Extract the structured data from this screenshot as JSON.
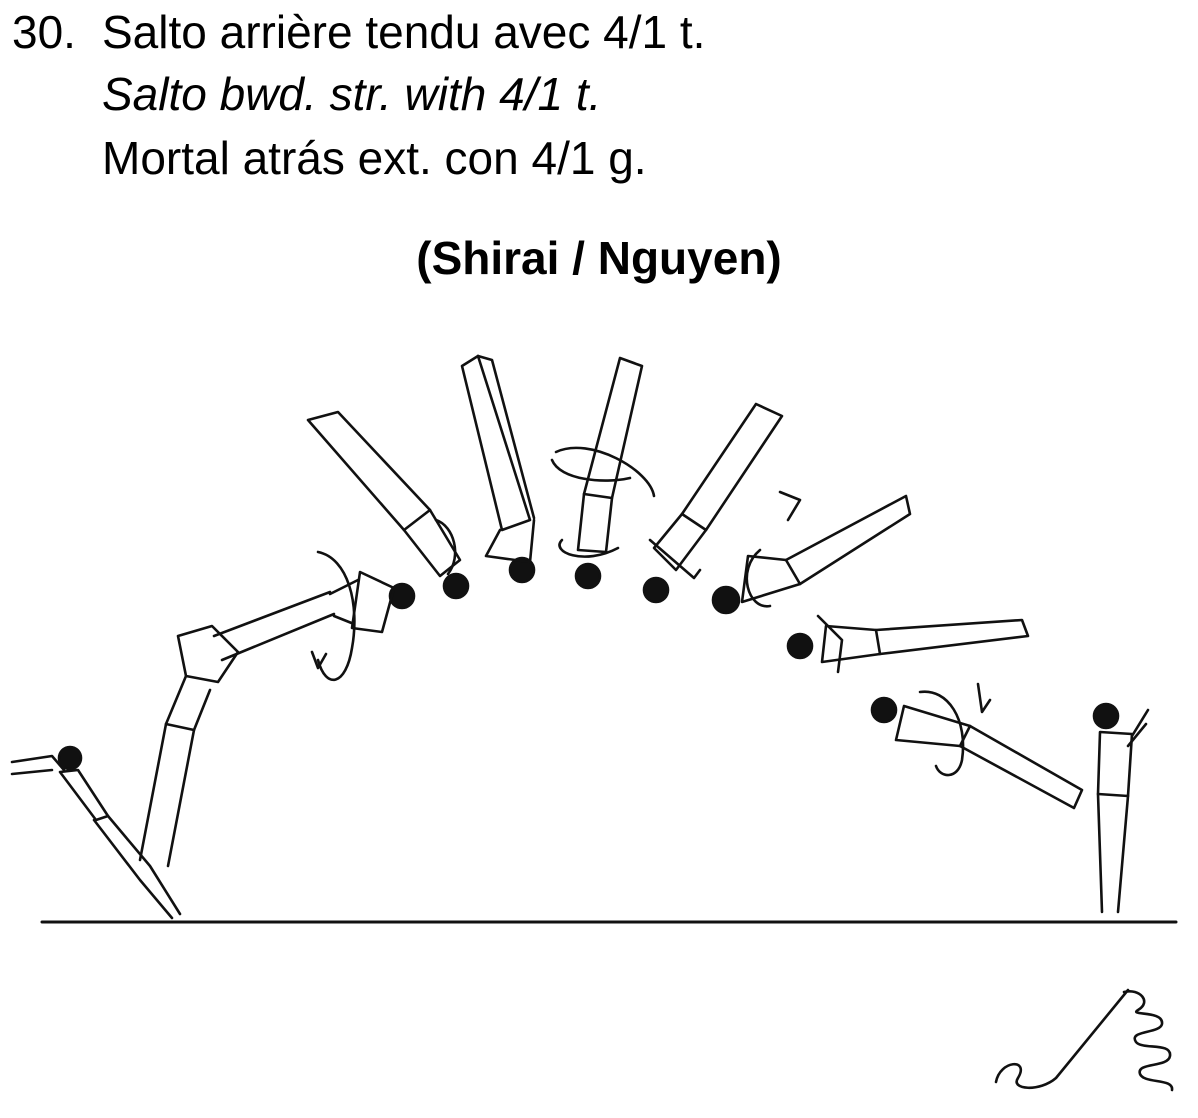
{
  "element": {
    "number": "30.",
    "name_fr": "Salto arrière tendu avec 4/1 t.",
    "name_en": "Salto bwd. str. with 4/1 t.",
    "name_es": "Mortal atrás ext. con 4/1 g.",
    "named_after": "(Shirai / Nguyen)"
  },
  "illustration": {
    "depicts": "gymnast-sequence-arc",
    "symbol": "spring-floor-symbol"
  }
}
